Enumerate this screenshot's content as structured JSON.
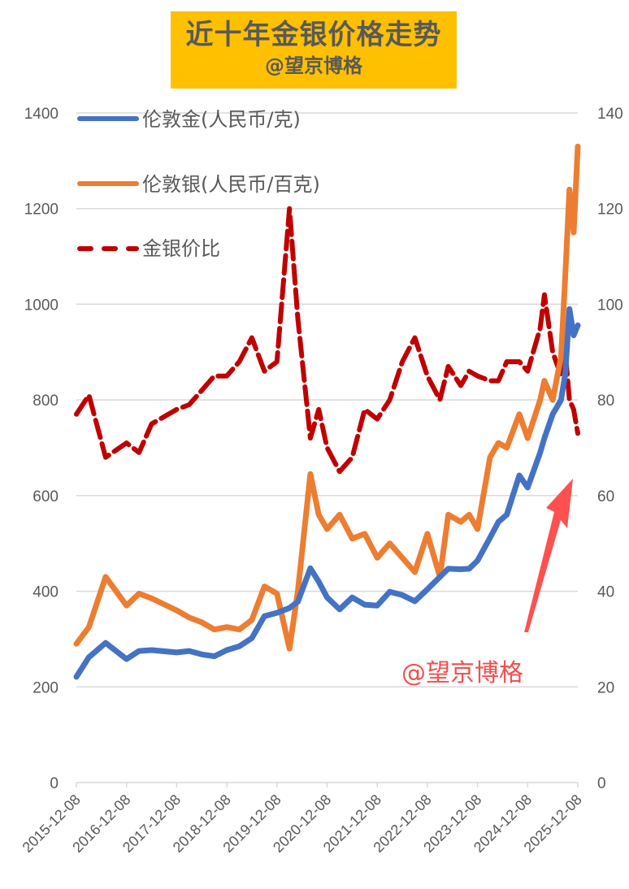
{
  "title": {
    "main": "近十年金银价格走势",
    "sub": "@望京博格",
    "background": "#ffc000"
  },
  "legend": [
    {
      "label": "伦敦金(人民币/克)",
      "color": "#4472c4",
      "style": "solid"
    },
    {
      "label": "伦敦银(人民币/百克)",
      "color": "#ed7d31",
      "style": "solid"
    },
    {
      "label": "金银价比",
      "color": "#c00000",
      "style": "dashed"
    }
  ],
  "watermark": "@望京博格",
  "annotation": {
    "type": "arrow",
    "color": "#ff5050",
    "direction": "up-right"
  },
  "chart_data": {
    "type": "line",
    "title": "近十年金银价格走势",
    "subtitle": "@望京博格",
    "xlabel": "",
    "ylabel_left": "",
    "ylabel_right": "",
    "x_ticks": [
      "2015-12-08",
      "2016-12-08",
      "2017-12-08",
      "2018-12-08",
      "2019-12-08",
      "2020-12-08",
      "2021-12-08",
      "2022-12-08",
      "2023-12-08",
      "2024-12-08",
      "2025-12-08"
    ],
    "y_left_ticks": [
      0,
      200,
      400,
      600,
      800,
      1000,
      1200,
      1400
    ],
    "y_right_ticks": [
      0,
      20,
      40,
      60,
      80,
      100,
      120,
      140
    ],
    "ylim_left": [
      0,
      1400
    ],
    "ylim_right": [
      0,
      140
    ],
    "grid": true,
    "legend_position": "top-left inside",
    "x": [
      "2015-12",
      "2016-03",
      "2016-07",
      "2016-12",
      "2017-03",
      "2017-06",
      "2017-12",
      "2018-03",
      "2018-06",
      "2018-09",
      "2018-12",
      "2019-03",
      "2019-06",
      "2019-09",
      "2019-12",
      "2020-03",
      "2020-05",
      "2020-08",
      "2020-10",
      "2020-12",
      "2021-03",
      "2021-06",
      "2021-09",
      "2021-12",
      "2022-03",
      "2022-06",
      "2022-09",
      "2022-12",
      "2023-03",
      "2023-05",
      "2023-08",
      "2023-10",
      "2023-12",
      "2024-03",
      "2024-05",
      "2024-07",
      "2024-10",
      "2024-12",
      "2025-03",
      "2025-04",
      "2025-06",
      "2025-08",
      "2025-09",
      "2025-10",
      "2025-11",
      "2025-12"
    ],
    "series": [
      {
        "name": "伦敦金(人民币/克)",
        "axis": "left",
        "color": "#4472c4",
        "values": [
          221,
          262,
          292,
          258,
          275,
          277,
          272,
          275,
          268,
          264,
          277,
          285,
          302,
          348,
          355,
          365,
          378,
          448,
          420,
          387,
          362,
          387,
          372,
          370,
          399,
          392,
          379,
          404,
          430,
          447,
          446,
          447,
          464,
          512,
          545,
          560,
          642,
          617,
          690,
          720,
          770,
          800,
          855,
          990,
          935,
          956
        ]
      },
      {
        "name": "伦敦银(人民币/百克)",
        "axis": "left",
        "color": "#ed7d31",
        "values": [
          290,
          325,
          430,
          370,
          395,
          385,
          360,
          345,
          335,
          320,
          325,
          320,
          340,
          410,
          395,
          280,
          400,
          645,
          560,
          530,
          560,
          510,
          520,
          470,
          500,
          470,
          440,
          520,
          430,
          560,
          545,
          560,
          530,
          680,
          710,
          700,
          770,
          720,
          800,
          840,
          800,
          890,
          1060,
          1240,
          1150,
          1330
        ]
      },
      {
        "name": "金银价比",
        "axis": "right",
        "color": "#c00000",
        "values": [
          77,
          81,
          68,
          71,
          69,
          75,
          78,
          79,
          82,
          85,
          85,
          88,
          93,
          86,
          88,
          120,
          97,
          72,
          78,
          70,
          65,
          68,
          78,
          76,
          80,
          88,
          93,
          85,
          80,
          87,
          83,
          86,
          85,
          84,
          84,
          88,
          88,
          86,
          95,
          102,
          90,
          85,
          90,
          80,
          78,
          73
        ]
      }
    ]
  }
}
